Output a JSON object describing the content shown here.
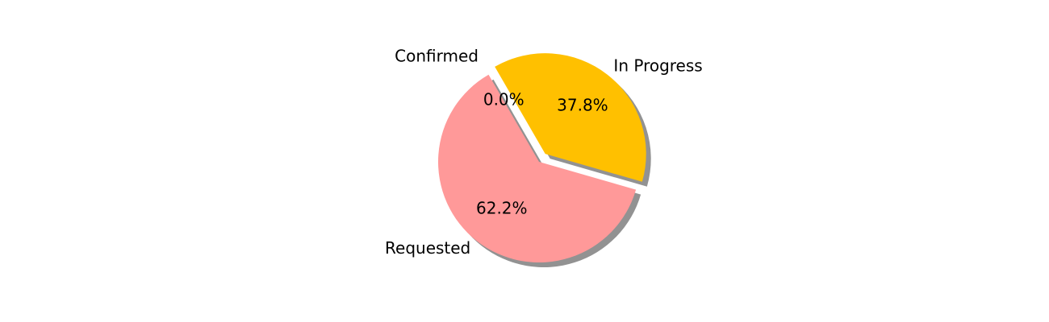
{
  "chart_data": {
    "type": "pie",
    "title": "",
    "start_angle_deg": 120,
    "shadow": true,
    "slices": [
      {
        "label": "Confirmed",
        "value": 0.0,
        "pct_label": "0.0%",
        "color": "#ffffff",
        "explode": 0.1
      },
      {
        "label": "Requested",
        "value": 62.2,
        "pct_label": "62.2%",
        "color": "#ff9999",
        "explode": 0.0
      },
      {
        "label": "In Progress",
        "value": 37.8,
        "pct_label": "37.8%",
        "color": "#ffc000",
        "explode": 0.1
      }
    ]
  }
}
